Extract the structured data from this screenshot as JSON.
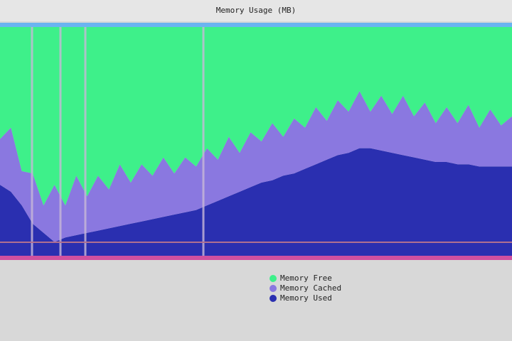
{
  "chart_data": {
    "type": "area",
    "title": "Memory Usage (MB)",
    "categories": [
      null,
      null,
      null,
      null,
      null,
      null,
      null,
      null,
      null,
      null,
      null,
      null,
      null,
      null,
      null,
      null,
      null,
      null,
      null,
      null,
      null,
      null,
      null,
      null,
      null,
      null,
      null,
      null,
      null,
      null,
      null,
      null,
      null,
      null,
      null,
      null,
      null,
      null,
      null,
      null,
      null,
      null,
      null,
      null,
      null,
      null,
      null,
      null
    ],
    "ylim": [
      0,
      100
    ],
    "stacked": true,
    "series": [
      {
        "name": "Memory Used",
        "color": "#2a2fb0",
        "values": [
          31,
          28,
          22,
          14,
          10,
          6,
          8,
          9,
          10,
          11,
          12,
          13,
          14,
          15,
          16,
          17,
          18,
          19,
          20,
          22,
          24,
          26,
          28,
          30,
          32,
          33,
          35,
          36,
          38,
          40,
          42,
          44,
          45,
          47,
          47,
          46,
          45,
          44,
          43,
          42,
          41,
          41,
          40,
          40,
          39,
          39,
          39,
          39
        ]
      },
      {
        "name": "Memory Cached",
        "color": "#8a78e0",
        "values": [
          20,
          28,
          15,
          22,
          12,
          25,
          14,
          26,
          16,
          24,
          17,
          27,
          18,
          25,
          19,
          26,
          18,
          24,
          19,
          25,
          18,
          26,
          17,
          24,
          18,
          25,
          17,
          24,
          18,
          25,
          17,
          24,
          18,
          25,
          16,
          24,
          17,
          26,
          18,
          25,
          17,
          24,
          18,
          26,
          17,
          25,
          18,
          22
        ]
      },
      {
        "name": "Memory Free",
        "color": "#3ef08a",
        "values": [
          49,
          44,
          63,
          64,
          78,
          69,
          78,
          65,
          74,
          65,
          71,
          60,
          68,
          60,
          65,
          57,
          64,
          57,
          61,
          53,
          58,
          48,
          55,
          46,
          50,
          42,
          48,
          40,
          44,
          35,
          41,
          32,
          37,
          28,
          37,
          30,
          38,
          30,
          39,
          33,
          42,
          35,
          42,
          34,
          44,
          36,
          43,
          39
        ]
      }
    ]
  }
}
